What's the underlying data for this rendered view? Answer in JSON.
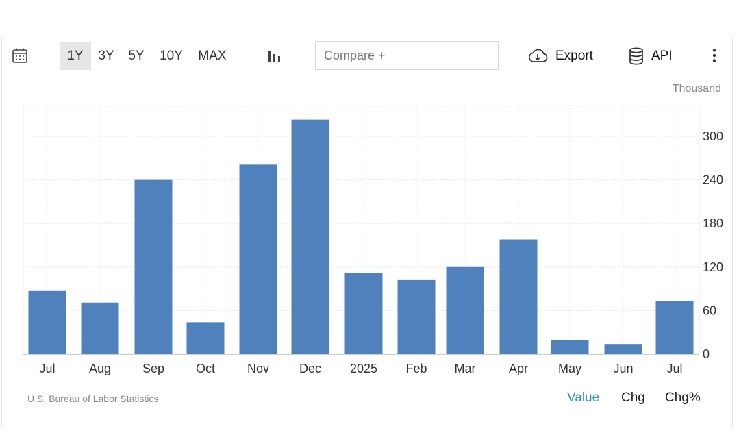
{
  "toolbar": {
    "calendar_icon": "calendar-icon",
    "ranges": [
      {
        "label": "1Y",
        "active": true
      },
      {
        "label": "3Y",
        "active": false
      },
      {
        "label": "5Y",
        "active": false
      },
      {
        "label": "10Y",
        "active": false
      },
      {
        "label": "MAX",
        "active": false
      }
    ],
    "chart_type_icon": "bar-chart-icon",
    "compare_placeholder": "Compare +",
    "export_label": "Export",
    "api_label": "API",
    "more_icon": "more-vertical-icon"
  },
  "chart": {
    "unit": "Thousand",
    "source": "U.S. Bureau of Labor Statistics",
    "bar_color": "#4f81bd"
  },
  "view_tabs": [
    {
      "label": "Value",
      "active": true
    },
    {
      "label": "Chg",
      "active": false
    },
    {
      "label": "Chg%",
      "active": false
    }
  ],
  "colors": {
    "active_tab": "#2a8fd8",
    "active_range_bg": "#e6e6e6"
  },
  "chart_data": {
    "type": "bar",
    "categories": [
      "Jul",
      "Aug",
      "Sep",
      "Oct",
      "Nov",
      "Dec",
      "2025",
      "Feb",
      "Mar",
      "Apr",
      "May",
      "Jun",
      "Jul"
    ],
    "values": [
      87,
      71,
      240,
      44,
      261,
      323,
      112,
      102,
      120,
      158,
      19,
      14,
      73
    ],
    "ylim": [
      0,
      345
    ],
    "yticks": [
      0,
      60,
      120,
      180,
      240,
      300
    ],
    "y_axis_side": "right",
    "grid": true,
    "unit": "Thousand"
  }
}
